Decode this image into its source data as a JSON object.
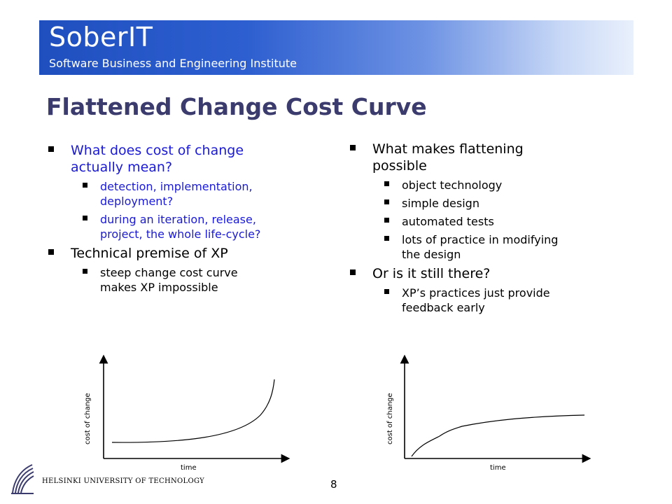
{
  "header": {
    "brand": "SoberIT",
    "subtitle": "Software Business and Engineering Institute",
    "banner_color_start": "#1f4fbf",
    "banner_color_end": "#e9f0fc"
  },
  "slide": {
    "title": "Flattened Change Cost Curve",
    "title_color": "#3b3b6e",
    "left_column": [
      {
        "text_line1": "What does cost of change",
        "text_line2": "actually mean?",
        "color": "#1a1ad6",
        "sub": [
          {
            "line1": "detection, implementation,",
            "line2": "deployment?"
          },
          {
            "line1": "during an iteration, release,",
            "line2": "project, the whole life-cycle?"
          }
        ]
      },
      {
        "text_line1": "Technical premise of XP",
        "color": "#000000",
        "sub": [
          {
            "line1": "steep change cost curve",
            "line2": "makes XP impossible"
          }
        ]
      }
    ],
    "right_column": [
      {
        "text_line1": "What makes flattening",
        "text_line2": "possible",
        "sub": [
          {
            "line1": "object technology"
          },
          {
            "line1": "simple design"
          },
          {
            "line1": "automated tests"
          },
          {
            "line1": "lots of practice in modifying",
            "line2": "the design"
          }
        ]
      },
      {
        "text_line1": "Or is it still there?",
        "sub": [
          {
            "line1": "XP’s practices just provide",
            "line2": "feedback early"
          }
        ]
      }
    ]
  },
  "charts": [
    {
      "ylabel": "cost of change",
      "xlabel": "time",
      "shape": "exponential"
    },
    {
      "ylabel": "cost of change",
      "xlabel": "time",
      "shape": "flattened"
    }
  ],
  "footer": {
    "institution": "HELSINKI UNIVERSITY OF TECHNOLOGY",
    "page_number": "8",
    "logo_icon": "hut-logo-icon"
  }
}
